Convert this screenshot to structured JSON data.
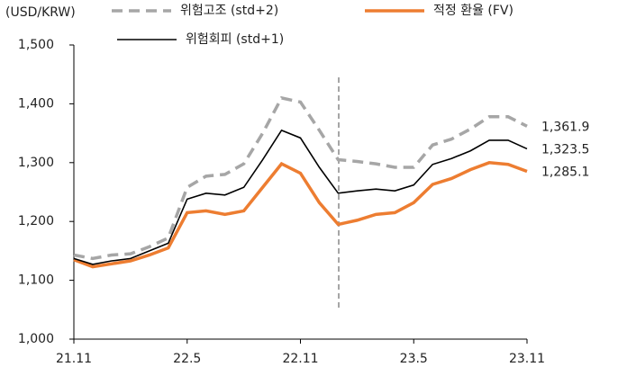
{
  "chart_data": {
    "type": "line",
    "y_label": "(USD/KRW)",
    "categories": [
      "21.11",
      null,
      null,
      null,
      null,
      null,
      "22.5",
      null,
      null,
      null,
      null,
      null,
      "22.11",
      null,
      null,
      null,
      null,
      null,
      "23.5",
      null,
      null,
      null,
      null,
      null,
      "23.11"
    ],
    "series": [
      {
        "name": "위험고조 (std+2)",
        "color": "#a6a6a6",
        "dash": true,
        "values": [
          1143,
          1137,
          1143,
          1145,
          1157,
          1172,
          1258,
          1277,
          1280,
          1298,
          1350,
          1410,
          1403,
          1355,
          1305,
          1302,
          1298,
          1292,
          1292,
          1330,
          1340,
          1357,
          1378,
          1378,
          1361.9
        ],
        "value_labels": [
          null,
          null,
          null,
          null,
          null,
          null,
          null,
          null,
          null,
          null,
          null,
          null,
          null,
          null,
          null,
          null,
          null,
          null,
          null,
          null,
          null,
          null,
          null,
          null,
          "1,361.9"
        ]
      },
      {
        "name": "적정 환율 (FV)",
        "color": "#ed7d31",
        "dash": false,
        "values": [
          1135,
          1123,
          1128,
          1133,
          1143,
          1155,
          1215,
          1218,
          1212,
          1218,
          1258,
          1298,
          1282,
          1232,
          1195,
          1202,
          1212,
          1215,
          1232,
          1263,
          1273,
          1288,
          1300,
          1297,
          1285.1
        ],
        "value_labels": [
          null,
          null,
          null,
          null,
          null,
          null,
          null,
          null,
          null,
          null,
          null,
          null,
          null,
          null,
          null,
          null,
          null,
          null,
          null,
          null,
          null,
          null,
          null,
          null,
          "1,285.1"
        ]
      },
      {
        "name": "위험회피 (std+1)",
        "color": "#000000",
        "dash": false,
        "values": [
          1137,
          1127,
          1133,
          1137,
          1150,
          1163,
          1238,
          1248,
          1245,
          1258,
          1305,
          1355,
          1342,
          1292,
          1248,
          1252,
          1255,
          1252,
          1262,
          1297,
          1307,
          1320,
          1338,
          1338,
          1323.5
        ],
        "value_labels": [
          null,
          null,
          null,
          null,
          null,
          null,
          null,
          null,
          null,
          null,
          null,
          null,
          null,
          null,
          null,
          null,
          null,
          null,
          null,
          null,
          null,
          null,
          null,
          null,
          "1,323.5"
        ]
      }
    ],
    "ylim": [
      1000,
      1500
    ],
    "yticks": [
      {
        "value": 1000,
        "label": "1,000"
      },
      {
        "value": 1100,
        "label": "1,100"
      },
      {
        "value": 1200,
        "label": "1,200"
      },
      {
        "value": 1300,
        "label": "1,300"
      },
      {
        "value": 1400,
        "label": "1,400"
      },
      {
        "value": 1500,
        "label": "1,500"
      }
    ],
    "grid": false
  }
}
